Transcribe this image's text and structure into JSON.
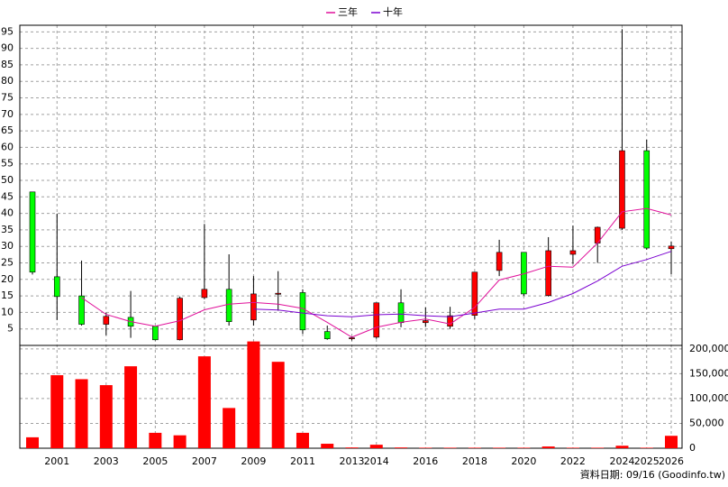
{
  "chart_data": {
    "type": "candlestick",
    "categories": [
      null,
      "2001",
      null,
      "2003",
      null,
      "2005",
      null,
      "2007",
      null,
      "2009",
      null,
      "2011",
      null,
      "2013",
      "2014",
      null,
      "2016",
      null,
      "2018",
      null,
      "2020",
      null,
      "2022",
      null,
      "2024",
      "2025",
      "2026"
    ],
    "open": [
      46.5,
      20.8,
      15,
      6.4,
      8.5,
      5.8,
      1.7,
      14.5,
      17,
      7.7,
      15.5,
      16,
      4.2,
      2,
      2.5,
      12.9,
      6.9,
      5.8,
      9.1,
      22.7,
      28.2,
      15.1,
      27.6,
      31,
      35.5,
      59,
      29.3
    ],
    "high": [
      46.5,
      39.9,
      25.7,
      9.9,
      16.5,
      5.8,
      14.8,
      36.8,
      27.6,
      21,
      22.5,
      17,
      6,
      2.7,
      13,
      17,
      11.5,
      11.7,
      22.3,
      32,
      28.2,
      32.8,
      36.3,
      36,
      95.8,
      62.3,
      31.5
    ],
    "low": [
      21.5,
      7.7,
      6,
      3.1,
      2.3,
      1.5,
      1.5,
      14,
      6,
      6,
      10.5,
      3.5,
      1.7,
      1.5,
      2,
      5.5,
      5.6,
      5,
      8,
      21,
      15,
      14.8,
      24.7,
      25,
      35,
      29,
      21.6
    ],
    "close": [
      22.2,
      14.8,
      6.4,
      8.8,
      5.8,
      1.7,
      14.3,
      17,
      7.2,
      15.6,
      15.8,
      4.7,
      2,
      2.3,
      12.9,
      6.9,
      7.5,
      9,
      22.2,
      28.2,
      15.6,
      28.7,
      28.7,
      35.8,
      59,
      29.5,
      30.1
    ],
    "up_color": "#ff0000",
    "down_color": "#00ff00",
    "series": [
      {
        "name": "三年",
        "color": "#e0109a",
        "values": [
          null,
          null,
          14.5,
          9.4,
          7.2,
          5.8,
          7.5,
          10.8,
          12.5,
          13,
          12.5,
          11.2,
          7,
          2.5,
          5.5,
          7,
          8,
          6.5,
          11.5,
          19.8,
          21.7,
          24,
          23.7,
          31,
          40.5,
          41.5,
          39.5
        ]
      },
      {
        "name": "十年",
        "color": "#7a00d0",
        "values": [
          null,
          null,
          null,
          null,
          null,
          null,
          null,
          null,
          null,
          11,
          10.7,
          9.8,
          9,
          8.7,
          9.3,
          9.5,
          9,
          8.7,
          9.8,
          11,
          11,
          13,
          15.7,
          19.5,
          24,
          26,
          28.5
        ]
      }
    ],
    "ylim": [
      0,
      97
    ],
    "yticks": [
      5,
      10,
      15,
      20,
      25,
      30,
      35,
      40,
      45,
      50,
      55,
      60,
      65,
      70,
      75,
      80,
      85,
      90,
      95
    ],
    "grid": true,
    "legend": "top",
    "volume": {
      "color": "#ff0000",
      "values": [
        22000,
        147000,
        139000,
        127000,
        165000,
        31000,
        26000,
        185000,
        81000,
        215000,
        174000,
        31000,
        9000,
        1500,
        7000,
        1500,
        1000,
        1000,
        1000,
        1000,
        1000,
        3500,
        1000,
        1000,
        5000,
        1000,
        25000
      ],
      "ylim": [
        0,
        207000
      ],
      "yticks": [
        0,
        {
          "value": 50000,
          "label": "50,000"
        },
        {
          "value": 100000,
          "label": "100,000"
        },
        {
          "value": 150000,
          "label": "150,000"
        },
        {
          "value": 200000,
          "label": "200,000"
        }
      ]
    },
    "annotation": "資料日期: 09/16 (Goodinfo.tw)"
  }
}
